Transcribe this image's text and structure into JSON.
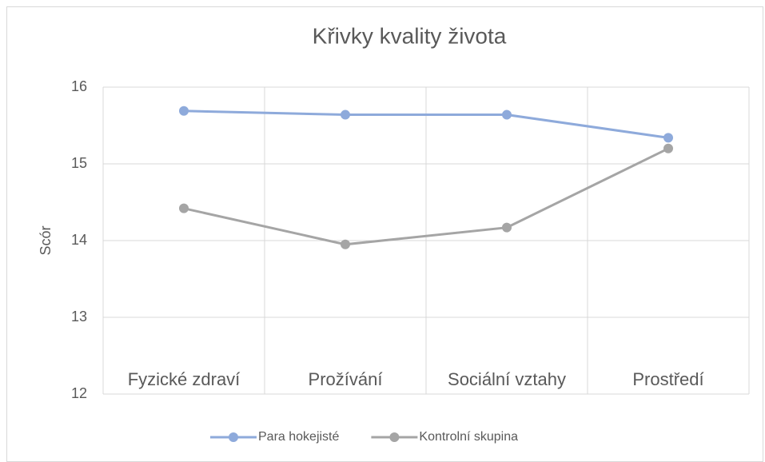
{
  "chart_data": {
    "type": "line",
    "title": "Křivky kvality života",
    "y_label": "Scór",
    "categories": [
      "Fyzické zdraví",
      "Prožívání",
      "Sociální vztahy",
      "Prostředí"
    ],
    "series": [
      {
        "name": "Para hokejisté",
        "color": "#8eaadb",
        "values": [
          15.69,
          15.64,
          15.64,
          15.34
        ]
      },
      {
        "name": "Kontrolní skupina",
        "color": "#a5a5a5",
        "values": [
          14.42,
          13.95,
          14.17,
          15.2
        ]
      }
    ],
    "ylim": [
      12,
      16
    ],
    "yticks": [
      12,
      13,
      14,
      15,
      16
    ],
    "grid": true,
    "legend": "bottom"
  }
}
